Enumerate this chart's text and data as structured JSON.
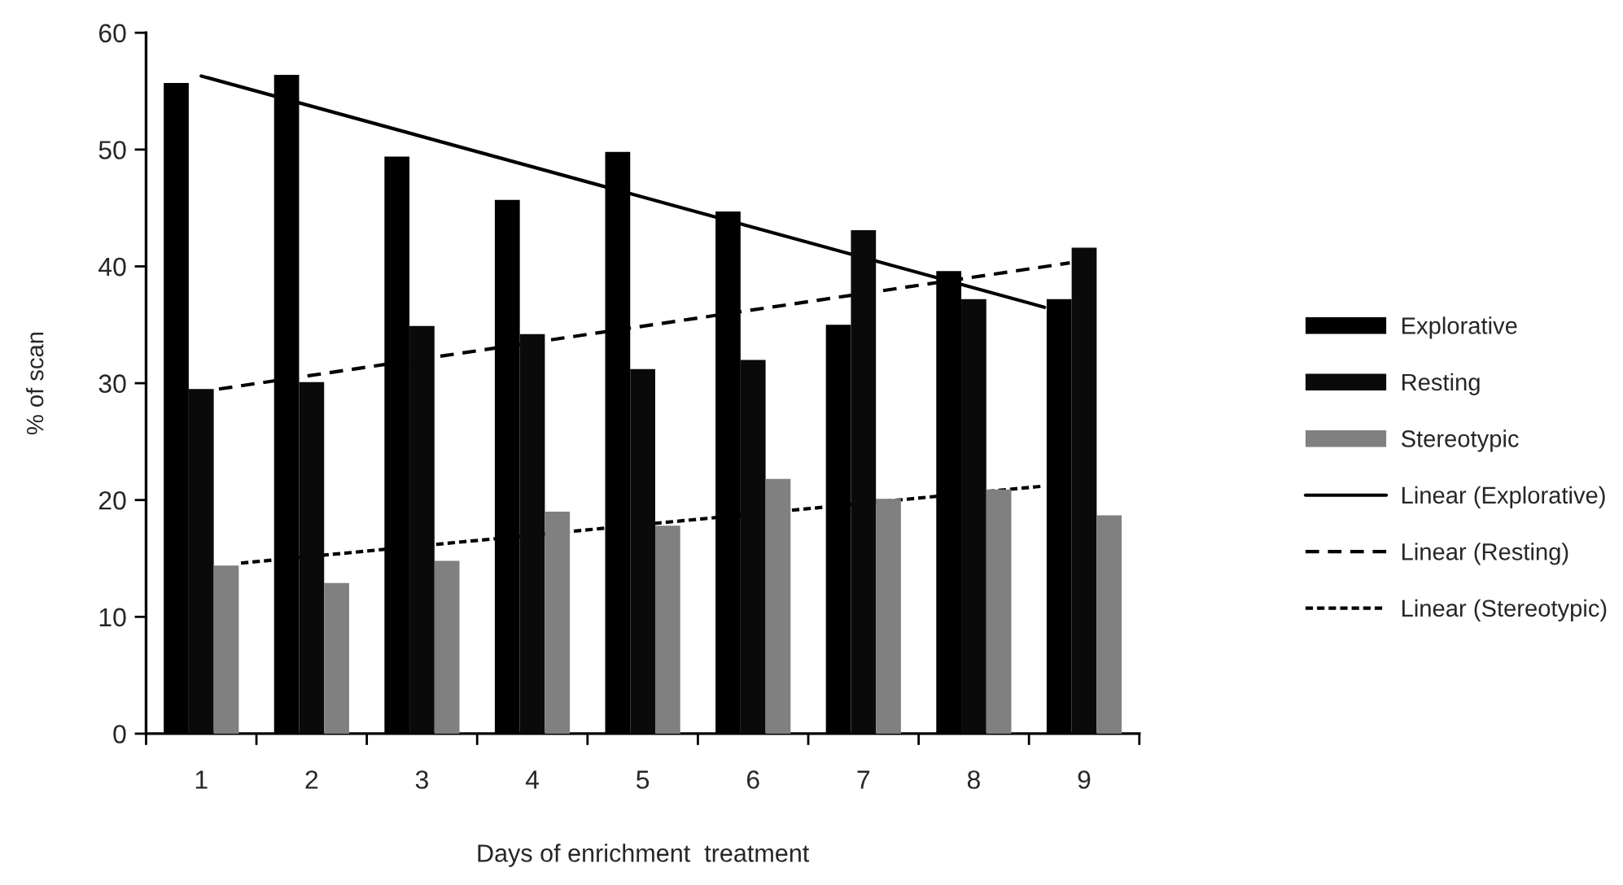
{
  "chart_data": {
    "type": "bar",
    "xlabel": "Days of enrichment  treatment",
    "ylabel": "% of scan",
    "x": [
      1,
      2,
      3,
      4,
      5,
      6,
      7,
      8,
      9
    ],
    "series": [
      {
        "name": "Explorative",
        "color": "#000000",
        "values": [
          55.7,
          56.4,
          49.4,
          45.7,
          49.8,
          44.7,
          35.0,
          39.6,
          37.2
        ]
      },
      {
        "name": "Resting",
        "color": "#0a0a0a",
        "values": [
          29.5,
          30.1,
          34.9,
          34.2,
          31.2,
          32.0,
          43.1,
          37.2,
          41.6
        ]
      },
      {
        "name": "Stereotypic",
        "color": "#808080",
        "values": [
          14.4,
          12.9,
          14.8,
          19.0,
          17.8,
          21.8,
          20.1,
          20.9,
          18.7
        ]
      },
      {
        "name": "Linear (Explorative)",
        "type": "line",
        "color": "#000000",
        "line_style": "solid",
        "x": [
          1,
          8.64
        ],
        "values": [
          56.3,
          36.5
        ]
      },
      {
        "name": "Linear (Resting)",
        "type": "line",
        "color": "#000000",
        "line_style": "dashed",
        "x": [
          1.16,
          8.87
        ],
        "values": [
          29.5,
          40.3
        ]
      },
      {
        "name": "Linear (Stereotypic)",
        "type": "line",
        "color": "#000000",
        "line_style": "dotted",
        "x": [
          1.36,
          8.64
        ],
        "values": [
          14.6,
          21.2
        ]
      }
    ],
    "xlim": [
      0.5,
      9.5
    ],
    "xticks": [
      {
        "value": 0.5,
        "label": null
      },
      1,
      {
        "value": 1.5,
        "label": null
      },
      2,
      {
        "value": 2.5,
        "label": null
      },
      3,
      {
        "value": 3.5,
        "label": null
      },
      4,
      {
        "value": 4.5,
        "label": null
      },
      5,
      {
        "value": 5.5,
        "label": null
      },
      6,
      {
        "value": 6.5,
        "label": null
      },
      7,
      {
        "value": 7.5,
        "label": null
      },
      8,
      {
        "value": 8.5,
        "label": null
      },
      9,
      {
        "value": 9.5,
        "label": null
      }
    ],
    "ylim": [
      0,
      60
    ],
    "yticks": [
      0,
      10,
      20,
      30,
      40,
      50,
      60
    ],
    "legend": "right"
  }
}
